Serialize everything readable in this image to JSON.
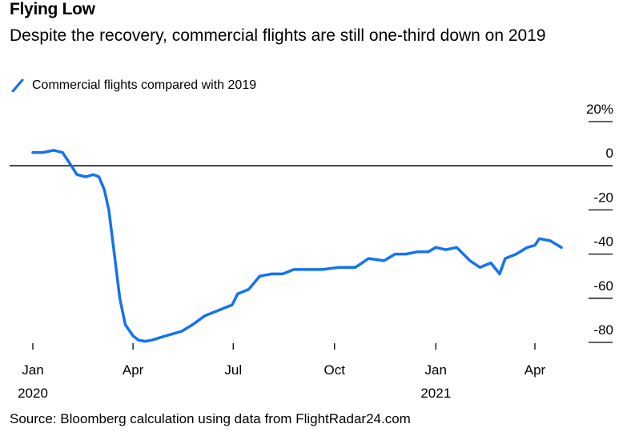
{
  "header": {
    "title": "Flying Low",
    "subtitle": "Despite the recovery, commercial flights are still one-third down on 2019"
  },
  "footer": {
    "source": "Source: Bloomberg calculation using data from FlightRadar24.com"
  },
  "colors": {
    "series": "#1473f2",
    "axis": "#000000"
  },
  "chart_data": {
    "type": "line",
    "title": "",
    "xlabel": "",
    "ylabel": "",
    "ylim": [
      -80,
      20
    ],
    "y_ticks": [
      20,
      0,
      -20,
      -40,
      -60,
      -80
    ],
    "y_tick_labels": [
      "20%",
      "0",
      "-20",
      "-40",
      "-60",
      "-80"
    ],
    "x_ticks": [
      {
        "date": "2020-01-01",
        "label": "Jan",
        "year": "2020"
      },
      {
        "date": "2020-04-01",
        "label": "Apr",
        "year": ""
      },
      {
        "date": "2020-07-01",
        "label": "Jul",
        "year": ""
      },
      {
        "date": "2020-10-01",
        "label": "Oct",
        "year": ""
      },
      {
        "date": "2021-01-01",
        "label": "Jan",
        "year": "2021"
      },
      {
        "date": "2021-04-01",
        "label": "Apr",
        "year": ""
      }
    ],
    "legend_placement": "top-left",
    "grid": false,
    "series": [
      {
        "name": "Commercial flights compared with 2019",
        "x": [
          "2020-01-01",
          "2020-01-10",
          "2020-01-20",
          "2020-01-28",
          "2020-02-05",
          "2020-02-10",
          "2020-02-18",
          "2020-02-25",
          "2020-03-01",
          "2020-03-06",
          "2020-03-10",
          "2020-03-15",
          "2020-03-20",
          "2020-03-25",
          "2020-04-01",
          "2020-04-06",
          "2020-04-12",
          "2020-04-18",
          "2020-05-01",
          "2020-05-15",
          "2020-05-25",
          "2020-06-05",
          "2020-06-20",
          "2020-06-30",
          "2020-07-05",
          "2020-07-15",
          "2020-07-25",
          "2020-08-05",
          "2020-08-15",
          "2020-08-25",
          "2020-09-05",
          "2020-09-20",
          "2020-10-05",
          "2020-10-20",
          "2020-11-01",
          "2020-11-15",
          "2020-11-25",
          "2020-12-05",
          "2020-12-15",
          "2020-12-25",
          "2021-01-01",
          "2021-01-10",
          "2021-01-20",
          "2021-02-01",
          "2021-02-10",
          "2021-02-20",
          "2021-02-28",
          "2021-03-05",
          "2021-03-15",
          "2021-03-25",
          "2021-04-01",
          "2021-04-05",
          "2021-04-15",
          "2021-04-25"
        ],
        "y": [
          6,
          6,
          7,
          6,
          0,
          -4,
          -5,
          -4,
          -5,
          -11,
          -20,
          -40,
          -60,
          -72,
          -77,
          -79,
          -79.5,
          -79,
          -77,
          -75,
          -72,
          -68,
          -65,
          -63,
          -58,
          -56,
          -50,
          -49,
          -49,
          -47,
          -47,
          -47,
          -46,
          -46,
          -42,
          -43,
          -40,
          -40,
          -39,
          -39,
          -37,
          -38,
          -37,
          -43,
          -46,
          -44,
          -49,
          -42,
          -40,
          -37,
          -36,
          -33,
          -34,
          -37
        ]
      }
    ]
  }
}
